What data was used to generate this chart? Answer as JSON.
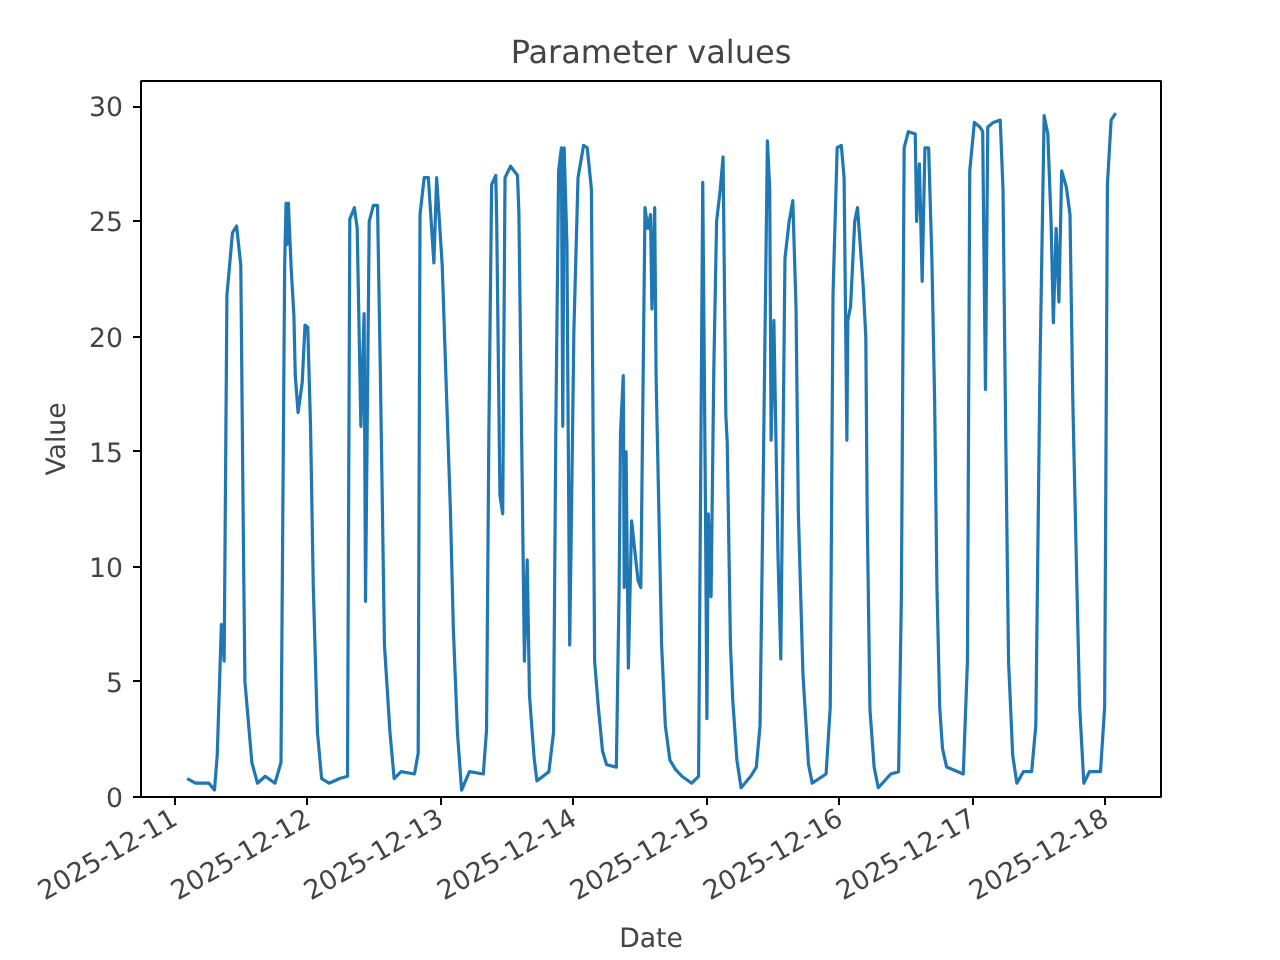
{
  "chart_data": {
    "type": "line",
    "title": "Parameter values",
    "xlabel": "Date",
    "ylabel": "Value",
    "xlim": [
      "2025-12-10T18:00",
      "2025-12-18T10:00"
    ],
    "xticks": [
      "2025-12-11",
      "2025-12-12",
      "2025-12-13",
      "2025-12-14",
      "2025-12-15",
      "2025-12-16",
      "2025-12-17",
      "2025-12-18"
    ],
    "ylim": [
      0,
      31.1
    ],
    "yticks": [
      0,
      5,
      10,
      15,
      20,
      25,
      30
    ],
    "grid": false,
    "marker": "none",
    "line_style": "solid",
    "series": [
      {
        "color": "#1f77b4",
        "x": [
          "2025-12-11T02:20",
          "2025-12-11T03:50",
          "2025-12-11T06:15",
          "2025-12-11T07:15",
          "2025-12-11T07:45",
          "2025-12-11T08:30",
          "2025-12-11T09:00",
          "2025-12-11T09:30",
          "2025-12-11T10:30",
          "2025-12-11T11:15",
          "2025-12-11T12:00",
          "2025-12-11T12:30",
          "2025-12-11T12:45",
          "2025-12-11T14:00",
          "2025-12-11T15:00",
          "2025-12-11T16:25",
          "2025-12-11T18:10",
          "2025-12-11T19:15",
          "2025-12-11T19:55",
          "2025-12-11T20:10",
          "2025-12-11T20:20",
          "2025-12-11T20:35",
          "2025-12-11T21:05",
          "2025-12-11T21:35",
          "2025-12-11T21:50",
          "2025-12-11T22:20",
          "2025-12-11T23:05",
          "2025-12-11T23:35",
          "2025-12-12T00:05",
          "2025-12-12T00:35",
          "2025-12-12T01:05",
          "2025-12-12T01:50",
          "2025-12-12T02:35",
          "2025-12-12T03:55",
          "2025-12-12T05:50",
          "2025-12-12T07:15",
          "2025-12-12T07:40",
          "2025-12-12T08:30",
          "2025-12-12T09:00",
          "2025-12-12T09:40",
          "2025-12-12T10:15",
          "2025-12-12T10:30",
          "2025-12-12T11:10",
          "2025-12-12T11:55",
          "2025-12-12T12:40",
          "2025-12-12T13:10",
          "2025-12-12T13:55",
          "2025-12-12T14:55",
          "2025-12-12T15:40",
          "2025-12-12T16:55",
          "2025-12-12T19:20",
          "2025-12-12T20:00",
          "2025-12-12T20:20",
          "2025-12-12T21:05",
          "2025-12-12T21:50",
          "2025-12-12T22:50",
          "2025-12-12T23:20",
          "2025-12-13T00:20",
          "2025-12-13T01:50",
          "2025-12-13T02:20",
          "2025-12-13T03:05",
          "2025-12-13T03:50",
          "2025-12-13T05:15",
          "2025-12-13T07:45",
          "2025-12-13T08:20",
          "2025-12-13T08:45",
          "2025-12-13T09:15",
          "2025-12-13T10:00",
          "2025-12-13T10:10",
          "2025-12-13T10:45",
          "2025-12-13T11:15",
          "2025-12-13T11:40",
          "2025-12-13T12:40",
          "2025-12-13T13:55",
          "2025-12-13T14:10",
          "2025-12-13T14:55",
          "2025-12-13T15:10",
          "2025-12-13T15:40",
          "2025-12-13T16:05",
          "2025-12-13T16:55",
          "2025-12-13T17:25",
          "2025-12-13T19:35",
          "2025-12-13T20:25",
          "2025-12-13T20:50",
          "2025-12-13T21:20",
          "2025-12-13T21:50",
          "2025-12-13T22:05",
          "2025-12-13T22:20",
          "2025-12-13T22:50",
          "2025-12-13T23:20",
          "2025-12-13T23:35",
          "2025-12-14T00:05",
          "2025-12-14T00:50",
          "2025-12-14T01:50",
          "2025-12-14T02:30",
          "2025-12-14T03:15",
          "2025-12-14T03:50",
          "2025-12-14T04:30",
          "2025-12-14T05:15",
          "2025-12-14T06:00",
          "2025-12-14T07:45",
          "2025-12-14T08:15",
          "2025-12-14T08:30",
          "2025-12-14T09:00",
          "2025-12-14T09:10",
          "2025-12-14T09:30",
          "2025-12-14T09:55",
          "2025-12-14T10:30",
          "2025-12-14T11:10",
          "2025-12-14T11:40",
          "2025-12-14T12:10",
          "2025-12-14T12:55",
          "2025-12-14T13:25",
          "2025-12-14T13:55",
          "2025-12-14T14:10",
          "2025-12-14T14:40",
          "2025-12-14T14:55",
          "2025-12-14T15:55",
          "2025-12-14T16:35",
          "2025-12-14T17:25",
          "2025-12-14T18:25",
          "2025-12-14T19:35",
          "2025-12-14T21:20",
          "2025-12-14T22:35",
          "2025-12-14T23:20",
          "2025-12-14T23:50",
          "2025-12-15T00:05",
          "2025-12-15T00:20",
          "2025-12-15T00:50",
          "2025-12-15T01:20",
          "2025-12-15T01:50",
          "2025-12-15T02:30",
          "2025-12-15T03:00",
          "2025-12-15T03:30",
          "2025-12-15T03:45",
          "2025-12-15T04:20",
          "2025-12-15T04:45",
          "2025-12-15T05:30",
          "2025-12-15T06:15",
          "2025-12-15T08:00",
          "2025-12-15T09:00",
          "2025-12-15T09:40",
          "2025-12-15T10:10",
          "2025-12-15T11:00",
          "2025-12-15T11:25",
          "2025-12-15T11:40",
          "2025-12-15T12:10",
          "2025-12-15T12:55",
          "2025-12-15T13:25",
          "2025-12-15T14:10",
          "2025-12-15T14:55",
          "2025-12-15T15:35",
          "2025-12-15T16:10",
          "2025-12-15T16:35",
          "2025-12-15T17:25",
          "2025-12-15T18:25",
          "2025-12-15T19:05",
          "2025-12-15T21:35",
          "2025-12-15T22:20",
          "2025-12-15T22:50",
          "2025-12-15T23:35",
          "2025-12-16T00:20",
          "2025-12-16T00:50",
          "2025-12-16T01:20",
          "2025-12-16T01:30",
          "2025-12-16T02:00",
          "2025-12-16T02:45",
          "2025-12-16T03:15",
          "2025-12-16T04:15",
          "2025-12-16T04:45",
          "2025-12-16T05:00",
          "2025-12-16T05:30",
          "2025-12-16T06:15",
          "2025-12-16T07:00",
          "2025-12-16T09:15",
          "2025-12-16T10:40",
          "2025-12-16T11:10",
          "2025-12-16T11:40",
          "2025-12-16T12:25",
          "2025-12-16T13:40",
          "2025-12-16T13:55",
          "2025-12-16T14:25",
          "2025-12-16T14:55",
          "2025-12-16T15:25",
          "2025-12-16T16:05",
          "2025-12-16T16:40",
          "2025-12-16T17:10",
          "2025-12-16T17:35",
          "2025-12-16T18:05",
          "2025-12-16T18:35",
          "2025-12-16T19:20",
          "2025-12-16T22:20",
          "2025-12-16T23:05",
          "2025-12-16T23:30",
          "2025-12-17T00:20",
          "2025-12-17T01:20",
          "2025-12-17T01:50",
          "2025-12-17T02:20",
          "2025-12-17T02:45",
          "2025-12-17T03:45",
          "2025-12-17T05:00",
          "2025-12-17T05:30",
          "2025-12-17T06:00",
          "2025-12-17T06:30",
          "2025-12-17T07:15",
          "2025-12-17T08:00",
          "2025-12-17T09:10",
          "2025-12-17T10:40",
          "2025-12-17T11:25",
          "2025-12-17T12:10",
          "2025-12-17T12:55",
          "2025-12-17T13:35",
          "2025-12-17T14:10",
          "2025-12-17T14:35",
          "2025-12-17T15:05",
          "2025-12-17T15:35",
          "2025-12-17T16:05",
          "2025-12-17T16:55",
          "2025-12-17T17:35",
          "2025-12-17T18:05",
          "2025-12-17T18:50",
          "2025-12-17T19:20",
          "2025-12-17T20:05",
          "2025-12-17T21:05",
          "2025-12-17T23:05",
          "2025-12-17T23:50",
          "2025-12-18T00:20",
          "2025-12-18T01:00",
          "2025-12-18T01:50"
        ],
        "values": [
          0.8,
          0.6,
          0.6,
          0.3,
          1.8,
          7.5,
          5.9,
          21.8,
          24.5,
          24.8,
          23.1,
          10.4,
          5.0,
          1.5,
          0.6,
          0.9,
          0.6,
          1.5,
          23.1,
          25.8,
          24.0,
          25.8,
          23.0,
          20.9,
          18.3,
          16.7,
          18.0,
          20.5,
          20.4,
          16.1,
          9.1,
          2.8,
          0.8,
          0.6,
          0.8,
          0.9,
          25.1,
          25.6,
          24.7,
          16.1,
          21.0,
          8.5,
          25.0,
          25.7,
          25.7,
          18.6,
          6.6,
          2.8,
          0.8,
          1.1,
          1.0,
          1.9,
          25.3,
          26.9,
          26.9,
          23.2,
          26.9,
          23.1,
          12.3,
          7.4,
          2.8,
          0.3,
          1.1,
          1.0,
          2.9,
          15.8,
          26.6,
          27.0,
          25.0,
          13.1,
          12.3,
          26.9,
          27.4,
          27.0,
          25.4,
          10.7,
          5.9,
          10.3,
          4.4,
          1.7,
          0.7,
          1.1,
          2.8,
          16.1,
          27.2,
          28.2,
          16.1,
          28.2,
          24.0,
          6.6,
          11.0,
          20.2,
          26.9,
          28.3,
          28.2,
          26.4,
          5.9,
          3.9,
          2.0,
          1.4,
          1.3,
          9.1,
          15.8,
          18.3,
          9.1,
          15.0,
          5.6,
          12.0,
          10.5,
          9.4,
          9.1,
          25.6,
          24.7,
          25.3,
          21.2,
          25.6,
          18.3,
          6.6,
          3.1,
          1.6,
          1.2,
          0.9,
          0.6,
          0.9,
          26.7,
          12.3,
          3.4,
          12.3,
          8.7,
          18.6,
          25.0,
          26.4,
          27.8,
          16.6,
          15.4,
          6.6,
          4.2,
          1.6,
          0.4,
          0.9,
          1.3,
          3.1,
          12.3,
          28.5,
          26.4,
          15.5,
          20.7,
          10.4,
          6.0,
          23.4,
          25.0,
          25.9,
          21.2,
          12.3,
          5.3,
          1.4,
          0.6,
          1.0,
          3.9,
          21.8,
          28.2,
          28.3,
          26.9,
          15.5,
          20.7,
          21.3,
          25.0,
          25.6,
          22.3,
          20.0,
          12.3,
          3.8,
          1.3,
          0.4,
          1.0,
          1.1,
          8.7,
          28.2,
          28.9,
          28.8,
          25.0,
          27.5,
          22.4,
          28.2,
          28.2,
          23.4,
          17.2,
          9.1,
          3.9,
          2.1,
          1.3,
          1.0,
          5.9,
          27.2,
          29.3,
          29.1,
          28.9,
          17.7,
          29.1,
          29.3,
          29.4,
          26.4,
          15.5,
          5.9,
          1.8,
          0.6,
          1.1,
          1.1,
          3.1,
          18.6,
          29.6,
          28.8,
          25.0,
          20.6,
          24.7,
          21.5,
          27.2,
          26.5,
          25.3,
          17.3,
          9.1,
          3.9,
          0.6,
          1.1,
          1.1,
          3.9,
          26.6,
          29.4,
          29.7
        ]
      }
    ]
  }
}
